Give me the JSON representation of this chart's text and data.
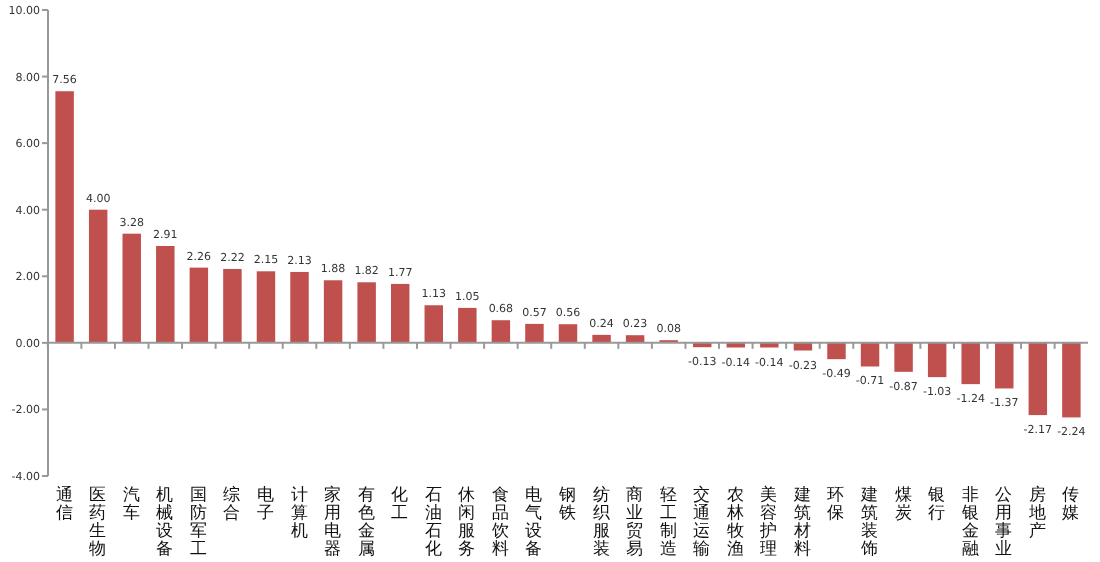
{
  "chart_data": {
    "type": "bar",
    "categories": [
      "通信",
      "医药生物",
      "汽车",
      "机械设备",
      "国防军工",
      "综合",
      "电子",
      "计算机",
      "家用电器",
      "有色金属",
      "化工",
      "石油石化",
      "休闲服务",
      "食品饮料",
      "电气设备",
      "钢铁",
      "纺织服装",
      "商业贸易",
      "轻工制造",
      "交通运输",
      "农林牧渔",
      "美容护理",
      "建筑材料",
      "环保",
      "建筑装饰",
      "煤炭",
      "银行",
      "非银金融",
      "公用事业",
      "房地产",
      "传媒"
    ],
    "values": [
      7.56,
      4.0,
      3.28,
      2.91,
      2.26,
      2.22,
      2.15,
      2.13,
      1.88,
      1.82,
      1.77,
      1.13,
      1.05,
      0.68,
      0.57,
      0.56,
      0.24,
      0.23,
      0.08,
      -0.13,
      -0.14,
      -0.14,
      -0.23,
      -0.49,
      -0.71,
      -0.87,
      -1.03,
      -1.24,
      -1.37,
      -2.17,
      -2.24
    ],
    "color": "#c0504d",
    "value_labels": [
      "7.56",
      "4.00",
      "3.28",
      "2.91",
      "2.26",
      "2.22",
      "2.15",
      "2.13",
      "1.88",
      "1.82",
      "1.77",
      "1.13",
      "1.05",
      "0.68",
      "0.57",
      "0.56",
      "0.24",
      "0.23",
      "0.08",
      "-0.13",
      "-0.14",
      "-0.14",
      "-0.23",
      "-0.49",
      "-0.71",
      "-0.87",
      "-1.03",
      "-1.24",
      "-1.37",
      "-2.17",
      "-2.24"
    ],
    "ylim": [
      -4,
      10
    ],
    "yticks": [
      {
        "value": -4,
        "label": "-4.00"
      },
      {
        "value": -2,
        "label": "-2.00"
      },
      {
        "value": 0,
        "label": "0.00"
      },
      {
        "value": 2,
        "label": "2.00"
      },
      {
        "value": 4,
        "label": "4.00"
      },
      {
        "value": 6,
        "label": "6.00"
      },
      {
        "value": 8,
        "label": "8.00"
      },
      {
        "value": 10,
        "label": "10.00"
      }
    ]
  }
}
